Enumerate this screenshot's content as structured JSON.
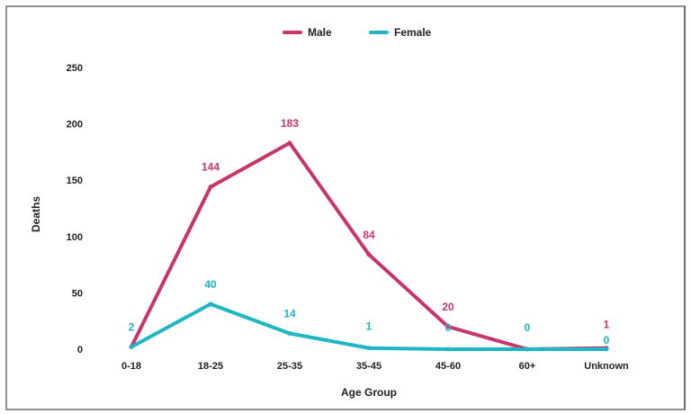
{
  "chart_data": {
    "type": "line",
    "categories": [
      "0-18",
      "18-25",
      "25-35",
      "35-45",
      "45-60",
      "60+",
      "Unknown"
    ],
    "series": [
      {
        "name": "Male",
        "color": "#c8356a",
        "values": [
          2,
          144,
          183,
          84,
          20,
          0,
          1
        ]
      },
      {
        "name": "Female",
        "color": "#1fb6c4",
        "values": [
          2,
          40,
          14,
          1,
          0,
          0,
          0
        ]
      }
    ],
    "xlabel": "Age Group",
    "ylabel": "Deaths",
    "ylim": [
      0,
      250
    ],
    "yticks": [
      0,
      50,
      100,
      150,
      200,
      250
    ],
    "grid": false,
    "legend": "top-center",
    "data_labels": {
      "Male": [
        "",
        "144",
        "183",
        "84",
        "20",
        "",
        "1"
      ],
      "Female": [
        "2",
        "40",
        "14",
        "1",
        "0",
        "0",
        "0"
      ]
    }
  }
}
